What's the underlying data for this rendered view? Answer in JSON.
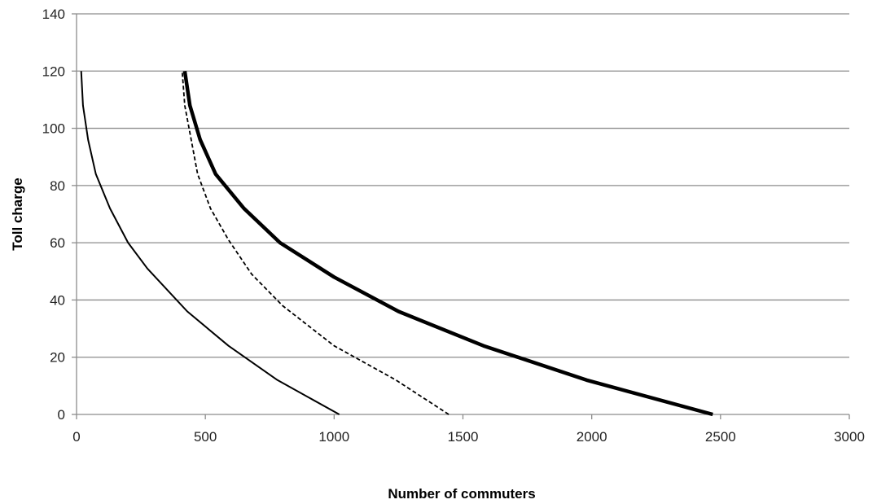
{
  "chart_data": {
    "type": "line",
    "title": "",
    "xlabel": "Number of commuters",
    "ylabel": "Toll charge",
    "xlim": [
      0,
      3000
    ],
    "ylim": [
      0,
      140
    ],
    "xticks": [
      0,
      500,
      1000,
      1500,
      2000,
      2500,
      3000
    ],
    "yticks": [
      0,
      20,
      40,
      60,
      80,
      100,
      120,
      140
    ],
    "grid": "horizontal",
    "legend": "none",
    "series": [
      {
        "style": "thin-solid",
        "color": "#000000",
        "points": [
          [
            1020,
            0
          ],
          [
            780,
            12
          ],
          [
            590,
            24
          ],
          [
            430,
            36
          ],
          [
            275,
            51
          ],
          [
            200,
            60
          ],
          [
            130,
            72
          ],
          [
            75,
            84
          ],
          [
            45,
            96
          ],
          [
            25,
            108
          ],
          [
            18,
            120
          ]
        ]
      },
      {
        "style": "dashed",
        "color": "#000000",
        "points": [
          [
            1445,
            0
          ],
          [
            1240,
            12
          ],
          [
            1000,
            24
          ],
          [
            800,
            38
          ],
          [
            680,
            49
          ],
          [
            590,
            61
          ],
          [
            520,
            72
          ],
          [
            470,
            84
          ],
          [
            445,
            96
          ],
          [
            420,
            108
          ],
          [
            410,
            120
          ]
        ]
      },
      {
        "style": "thick-solid",
        "color": "#000000",
        "points": [
          [
            2470,
            0
          ],
          [
            1980,
            12
          ],
          [
            1580,
            24
          ],
          [
            1250,
            36
          ],
          [
            1000,
            48
          ],
          [
            790,
            60
          ],
          [
            650,
            72
          ],
          [
            540,
            84
          ],
          [
            480,
            96
          ],
          [
            440,
            108
          ],
          [
            420,
            120
          ]
        ]
      }
    ]
  }
}
